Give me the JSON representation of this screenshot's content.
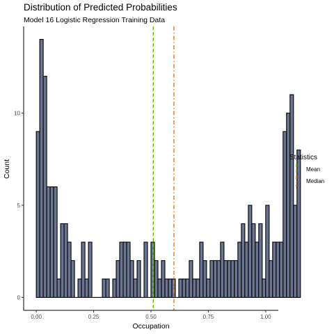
{
  "chart_data": {
    "type": "bar",
    "title": "Distribution of Predicted Probabilities",
    "subtitle": "Model 16 Logistic Regression Training Data",
    "xlabel": "Occupation",
    "ylabel": "Count",
    "xlim": [
      -0.055,
      1.055
    ],
    "ylim": [
      -0.7,
      14.7
    ],
    "x_ticks": [
      {
        "value": 0.0,
        "label": "0.00"
      },
      {
        "value": 0.25,
        "label": "0.25"
      },
      {
        "value": 0.5,
        "label": "0.50"
      },
      {
        "value": 0.75,
        "label": "0.75"
      },
      {
        "value": 1.0,
        "label": "1.00"
      }
    ],
    "y_ticks": [
      {
        "value": 0,
        "label": "0"
      },
      {
        "value": 5,
        "label": "5"
      },
      {
        "value": 10,
        "label": "10"
      }
    ],
    "bin_width": 0.01515,
    "bins_start": 0.0,
    "values": [
      9,
      14,
      12,
      6,
      6,
      6,
      1,
      4,
      4,
      3,
      2,
      0,
      1,
      3,
      1,
      3,
      0,
      0,
      0,
      1,
      1,
      0,
      1,
      2,
      3,
      3,
      3,
      2,
      1,
      2,
      0,
      3,
      0,
      3,
      2,
      1,
      2,
      1,
      1,
      1,
      0,
      1,
      1,
      1,
      2,
      1,
      1,
      3,
      2,
      1,
      2,
      2,
      2,
      3,
      2,
      2,
      2,
      2,
      3,
      4,
      3,
      5,
      4,
      3,
      4,
      1,
      5,
      2,
      3,
      3,
      3,
      9,
      10,
      11,
      5,
      8
    ],
    "fill_color": "#6a7592",
    "edge_color": "#000000",
    "grid": false,
    "reference_lines": [
      {
        "name": "Mean",
        "value": 0.51,
        "color": "#66c21a",
        "dash": "dashed"
      },
      {
        "name": "Median",
        "value": 0.6,
        "color": "#ef7f1a",
        "dash": "dotdash"
      }
    ],
    "legend": {
      "title": "Statistics",
      "placement": "right",
      "entries": [
        "Mean",
        "Median"
      ]
    }
  }
}
